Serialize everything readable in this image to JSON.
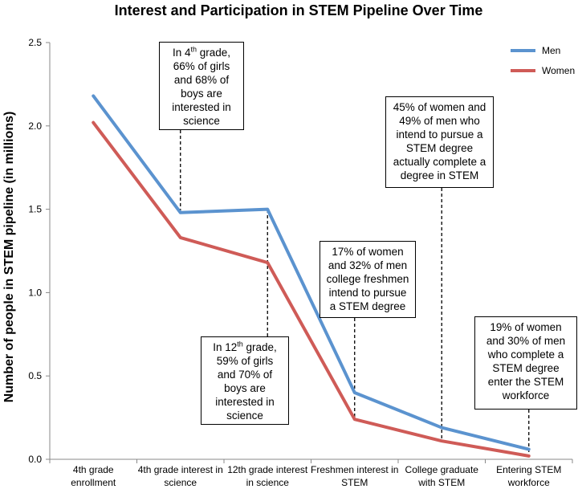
{
  "chart_data": {
    "type": "line",
    "title": "Interest and Participation in STEM Pipeline Over Time",
    "xlabel": "",
    "ylabel": "Number of people in STEM pipeline (in millions)",
    "ylim": [
      0,
      2.5
    ],
    "yticks": [
      "0.0",
      "0.5",
      "1.0",
      "1.5",
      "2.0",
      "2.5"
    ],
    "categories": [
      [
        "4th grade",
        "enrollment"
      ],
      [
        "4th grade interest in",
        "science"
      ],
      [
        "12th grade interest",
        "in science"
      ],
      [
        "Freshmen interest in",
        "STEM"
      ],
      [
        "College graduate",
        "with STEM"
      ],
      [
        "Entering STEM",
        "workforce"
      ]
    ],
    "series": [
      {
        "name": "Men",
        "color": "#5b93cf",
        "values": [
          2.18,
          1.48,
          1.5,
          0.4,
          0.19,
          0.06
        ]
      },
      {
        "name": "Women",
        "color": "#cf5b57",
        "values": [
          2.02,
          1.33,
          1.18,
          0.24,
          0.11,
          0.02
        ]
      }
    ],
    "legend_position": "top-right",
    "grid": false,
    "annotations": [
      {
        "category_index": 1,
        "anchor_series": 0,
        "placement": "above",
        "lines": [
          [
            "In 4",
            "th",
            " grade,"
          ],
          [
            "66% of girls"
          ],
          [
            "and 68% of"
          ],
          [
            "boys are"
          ],
          [
            "interested in"
          ],
          [
            "science"
          ]
        ]
      },
      {
        "category_index": 2,
        "anchor_series": 1,
        "placement": "below",
        "lines": [
          [
            "In 12",
            "th",
            " grade,"
          ],
          [
            "59% of girls"
          ],
          [
            "and 70% of"
          ],
          [
            "boys are"
          ],
          [
            "interested in"
          ],
          [
            "science"
          ]
        ]
      },
      {
        "category_index": 3,
        "anchor_series": 1,
        "placement": "above",
        "lines": [
          [
            "17% of women"
          ],
          [
            "and 32% of men"
          ],
          [
            "college freshmen"
          ],
          [
            "intend to pursue"
          ],
          [
            "a STEM degree"
          ]
        ]
      },
      {
        "category_index": 4,
        "anchor_series": 1,
        "placement": "above",
        "lines": [
          [
            "45% of women and"
          ],
          [
            "49% of men who"
          ],
          [
            "intend to pursue a"
          ],
          [
            "STEM degree"
          ],
          [
            "actually complete a"
          ],
          [
            "degree in STEM"
          ]
        ]
      },
      {
        "category_index": 5,
        "anchor_series": 1,
        "placement": "above",
        "lines": [
          [
            "19% of women"
          ],
          [
            "and 30% of men"
          ],
          [
            "who complete a"
          ],
          [
            "STEM degree"
          ],
          [
            "enter the STEM"
          ],
          [
            "workforce"
          ]
        ]
      }
    ]
  }
}
